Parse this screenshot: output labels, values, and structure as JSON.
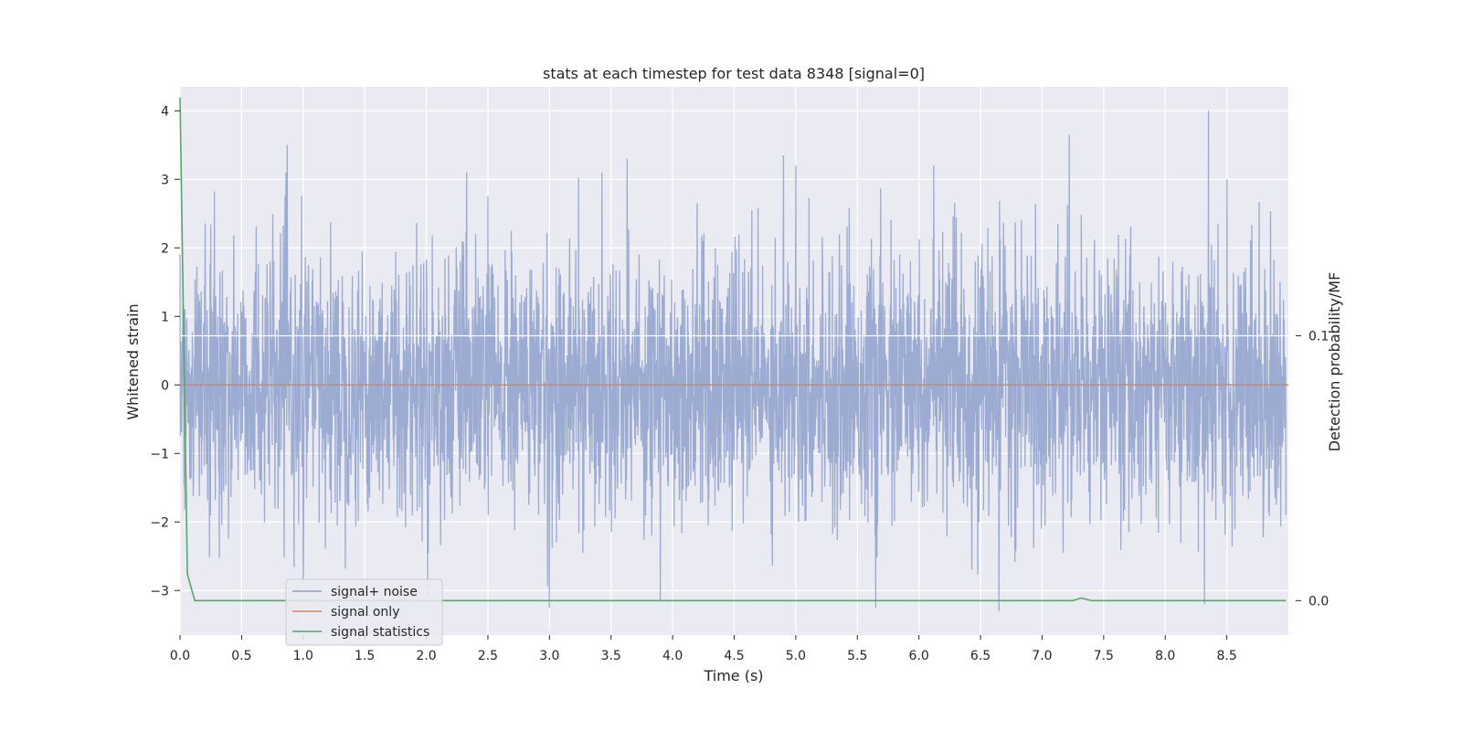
{
  "chart_data": {
    "type": "line",
    "title": "stats at each timestep for test data 8348 [signal=0]",
    "xlabel": "Time (s)",
    "ylabel": "Whitened strain",
    "y2label": "Detection probability/MF",
    "xlim": [
      0.0,
      9.0
    ],
    "ylim": [
      -3.65,
      4.35
    ],
    "y2lim": [
      -0.013,
      0.194
    ],
    "xticks": [
      "0.0",
      "0.5",
      "1.0",
      "1.5",
      "2.0",
      "2.5",
      "3.0",
      "3.5",
      "4.0",
      "4.5",
      "5.0",
      "5.5",
      "6.0",
      "6.5",
      "7.0",
      "7.5",
      "8.0",
      "8.5"
    ],
    "yticks": [
      "−3",
      "−2",
      "−1",
      "0",
      "1",
      "2",
      "3",
      "4"
    ],
    "y2ticks": [
      "0.0",
      "0.1"
    ],
    "grid": true,
    "legend_position": "lower-left",
    "colors": {
      "background": "#eaeaf2",
      "grid": "#ffffff",
      "signal_noise": "#8da0cb",
      "signal_only": "#dd8452",
      "signal_statistics": "#55a868"
    },
    "series": [
      {
        "name": "signal+ noise",
        "axis": "left",
        "description_values": "whitened noise, amplitude mostly within [-3, 3], peaks near 4.0 at t≈8.35",
        "x": [
          0.0,
          0.87,
          1.0,
          2.5,
          3.0,
          3.63,
          3.9,
          4.9,
          5.0,
          5.65,
          6.12,
          6.65,
          7.22,
          8.32,
          8.35,
          8.5,
          8.98
        ],
        "values": [
          1.9,
          3.5,
          -2.9,
          2.75,
          -3.25,
          3.3,
          -3.15,
          3.35,
          3.2,
          -3.25,
          3.2,
          -3.3,
          3.65,
          -3.2,
          4.0,
          3.0,
          -1.9
        ]
      },
      {
        "name": "signal only",
        "axis": "left",
        "x": [
          0.0,
          9.0
        ],
        "values": [
          0.0,
          0.0
        ]
      },
      {
        "name": "signal statistics",
        "axis": "right",
        "x": [
          0.0,
          0.06,
          0.12,
          1.0,
          2.0,
          3.0,
          4.0,
          5.0,
          6.0,
          7.0,
          7.25,
          7.32,
          7.4,
          8.0,
          8.98
        ],
        "values": [
          0.19,
          0.01,
          0.0,
          0.0,
          0.0,
          0.0,
          0.0,
          0.0,
          0.0,
          0.0,
          0.0,
          0.001,
          0.0,
          0.0,
          0.0
        ]
      }
    ],
    "legend": [
      "signal+ noise",
      "signal only",
      "signal statistics"
    ]
  }
}
